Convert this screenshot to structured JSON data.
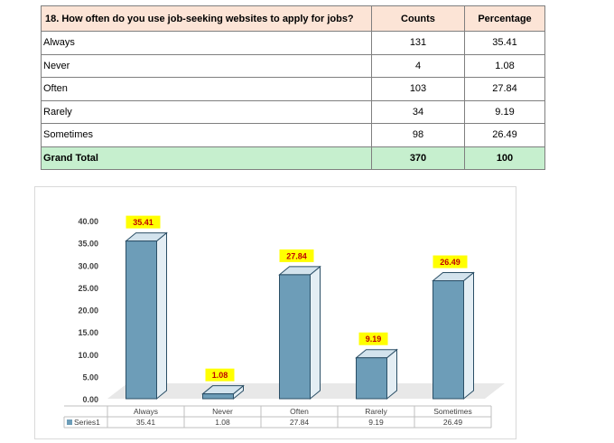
{
  "table": {
    "headers": [
      "18. How often do you use job-seeking websites to apply for jobs?",
      "Counts",
      "Percentage"
    ],
    "rows": [
      {
        "label": "Always",
        "count": "131",
        "pct": "35.41"
      },
      {
        "label": "Never",
        "count": "4",
        "pct": "1.08"
      },
      {
        "label": "Often",
        "count": "103",
        "pct": "27.84"
      },
      {
        "label": "Rarely",
        "count": "34",
        "pct": "9.19"
      },
      {
        "label": "Sometimes",
        "count": "98",
        "pct": "26.49"
      }
    ],
    "total": {
      "label": "Grand Total",
      "count": "370",
      "pct": "100"
    }
  },
  "chart_data": {
    "type": "bar",
    "categories": [
      "Always",
      "Never",
      "Often",
      "Rarely",
      "Sometimes"
    ],
    "series": [
      {
        "name": "Series1",
        "values": [
          35.41,
          1.08,
          27.84,
          9.19,
          26.49
        ]
      }
    ],
    "data_labels": [
      "35.41",
      "1.08",
      "27.84",
      "9.19",
      "26.49"
    ],
    "yticks": [
      "0.00",
      "5.00",
      "10.00",
      "15.00",
      "20.00",
      "25.00",
      "30.00",
      "35.00",
      "40.00"
    ],
    "ylim": [
      0,
      40
    ],
    "legend": "data-table",
    "colors": {
      "bar_front": "#6d9db8",
      "bar_side": "#e4eef4",
      "bar_top": "#d3e3ed",
      "bar_edge": "#2b4f66",
      "label_bg": "#ffff00",
      "label_text": "#c00000",
      "floor": "#e8e8e8"
    }
  }
}
